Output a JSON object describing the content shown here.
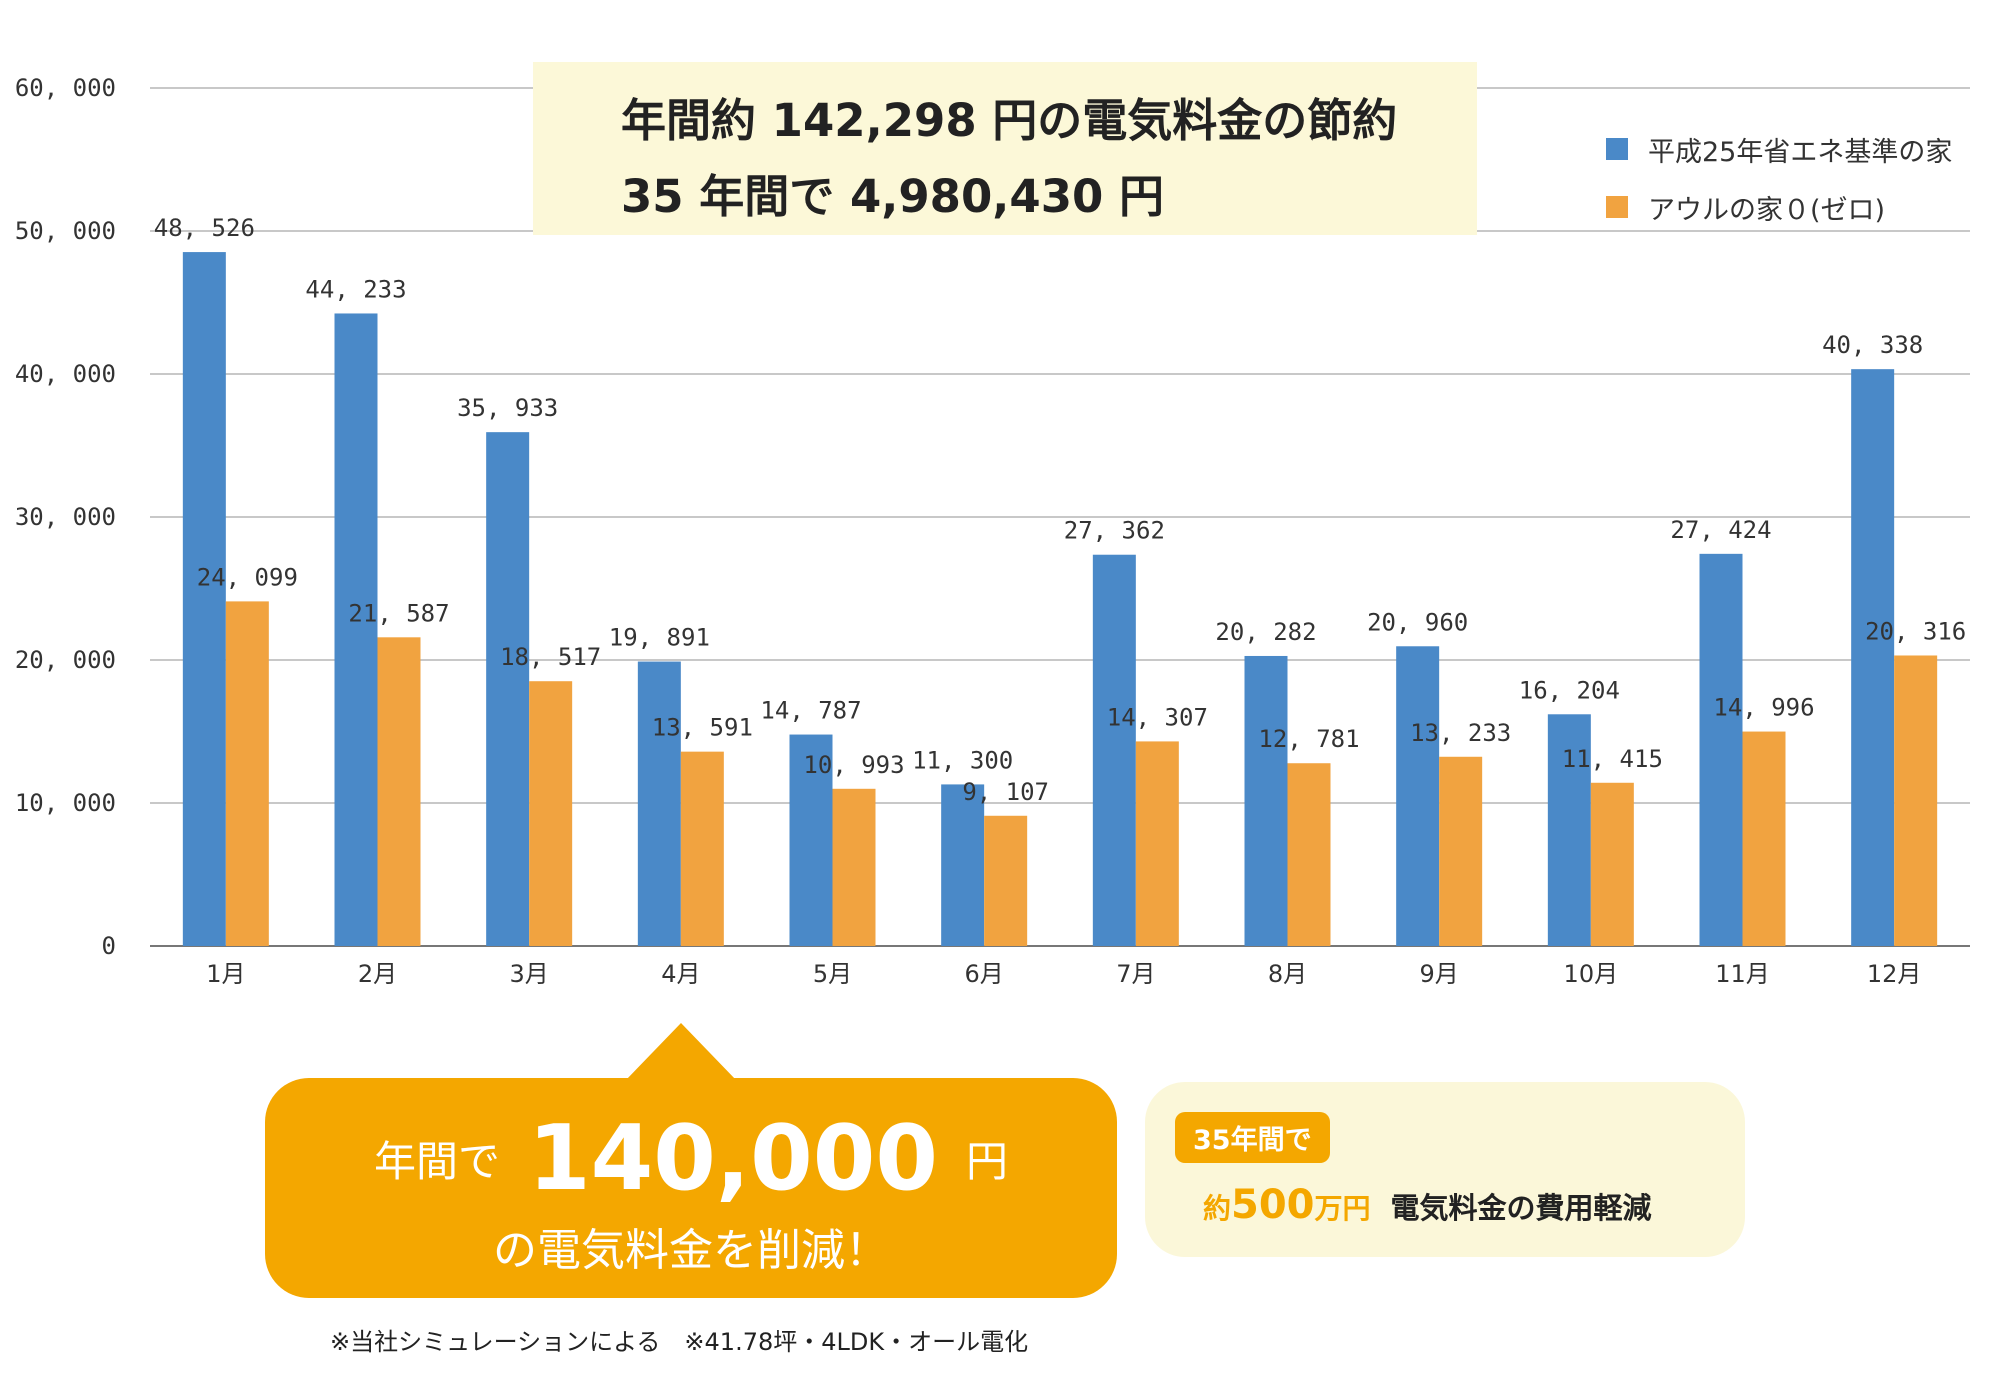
{
  "headline": {
    "line1": "年間約 142,298 円の電気料金の節約",
    "line2": "35 年間で 4,980,430 円"
  },
  "colors": {
    "series1": "#4a89c8",
    "series2": "#f1a340",
    "accent": "#f4a700"
  },
  "chart_data": {
    "type": "bar",
    "categories": [
      "1月",
      "2月",
      "3月",
      "4月",
      "5月",
      "6月",
      "7月",
      "8月",
      "9月",
      "10月",
      "11月",
      "12月"
    ],
    "series": [
      {
        "name": "平成25年省エネ基準の家",
        "values": [
          48526,
          44233,
          35933,
          19891,
          14787,
          11300,
          27362,
          20282,
          20960,
          16204,
          27424,
          40338
        ],
        "labels": [
          "48, 526",
          "44, 233",
          "35, 933",
          "19, 891",
          "14, 787",
          "11, 300",
          "27, 362",
          "20, 282",
          "20, 960",
          "16, 204",
          "27, 424",
          "40, 338"
        ]
      },
      {
        "name": "アウルの家０(ゼロ)",
        "values": [
          24099,
          21587,
          18517,
          13591,
          10993,
          9107,
          14307,
          12781,
          13233,
          11415,
          14996,
          20316
        ],
        "labels": [
          "24, 099",
          "21, 587",
          "18, 517",
          "13, 591",
          "10, 993",
          "9, 107",
          "14, 307",
          "12, 781",
          "13, 233",
          "11, 415",
          "14, 996",
          "20, 316"
        ]
      }
    ],
    "yticks": [
      0,
      10000,
      20000,
      30000,
      40000,
      50000,
      60000
    ],
    "ytick_labels": [
      "0",
      "10, 000",
      "20, 000",
      "30, 000",
      "40, 000",
      "50, 000",
      "60, 000"
    ],
    "ylim": [
      0,
      60000
    ],
    "grid": true,
    "legend_position": "top-right"
  },
  "callout": {
    "prefix": "年間で",
    "amount": "140,000",
    "unit": "円",
    "line2": "の電気料金を削減！"
  },
  "savings": {
    "badge": "35年間で",
    "approx": "約",
    "amount": "500",
    "unit": "万円",
    "desc": "電気料金の費用軽減"
  },
  "footnote": "※当社シミュレーションによる　※41.78坪・4LDK・オール電化"
}
